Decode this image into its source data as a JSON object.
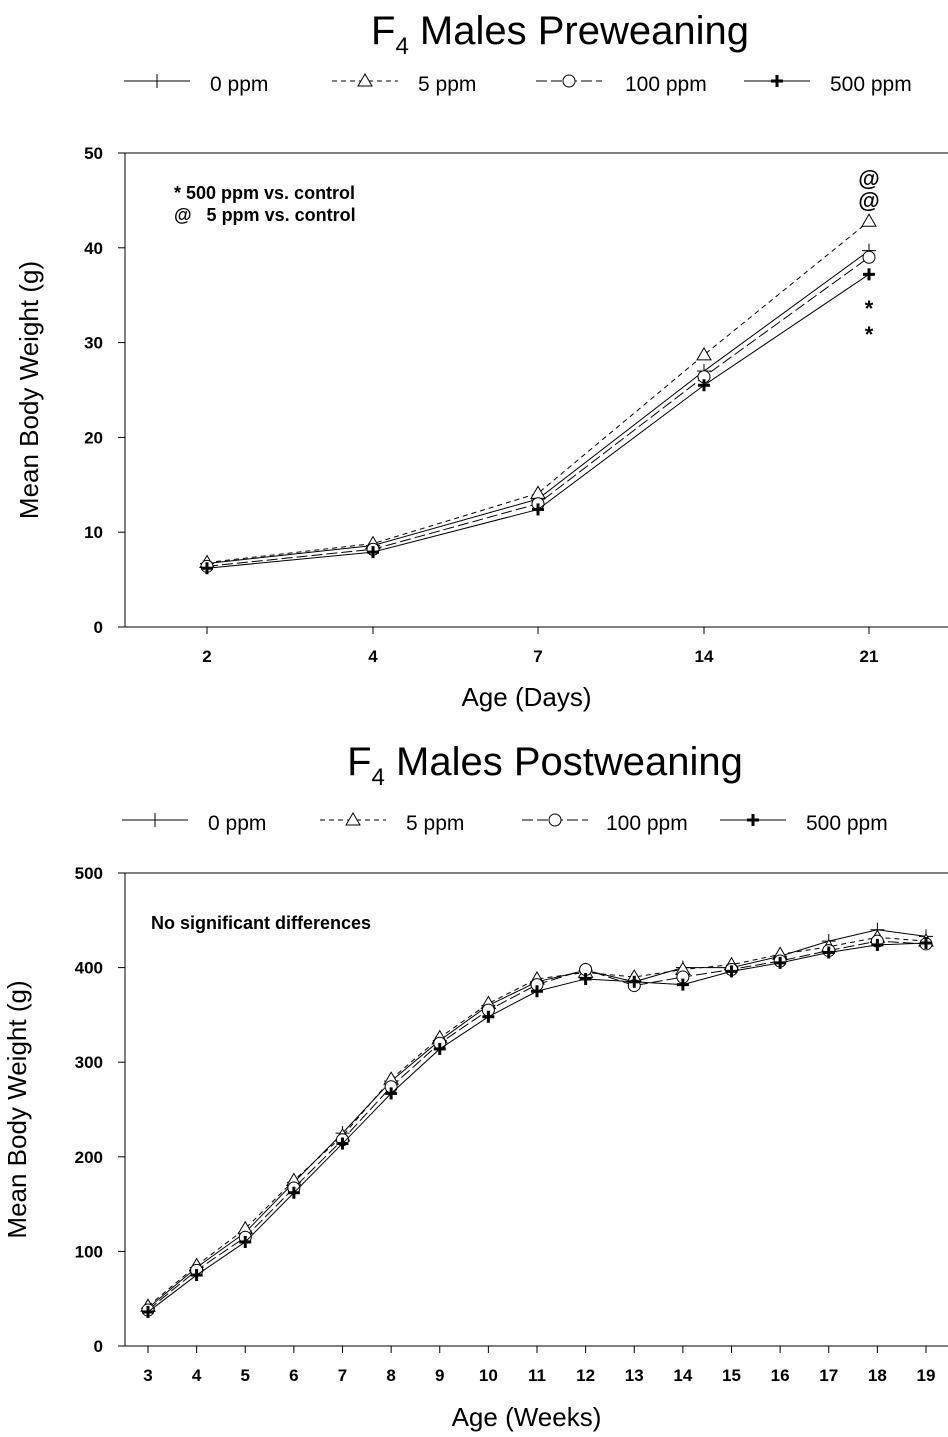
{
  "chart_data": [
    {
      "type": "line",
      "title": "F",
      "title_subscript": "4",
      "title_rest": " Males Preweaning",
      "xlabel": "Age (Days)",
      "ylabel": "Mean Body Weight (g)",
      "categories": [
        "2",
        "4",
        "7",
        "14",
        "21"
      ],
      "ylim": [
        0,
        50
      ],
      "yticks": [
        "0",
        "10",
        "20",
        "30",
        "40",
        "50"
      ],
      "grid": false,
      "legend_position": "top",
      "annotations": [
        "* 500 ppm vs. control",
        "@   5 ppm vs. control"
      ],
      "significance_marks": [
        "@",
        "@",
        "*",
        "*"
      ],
      "series": [
        {
          "name": "0 ppm",
          "marker": "thin-plus",
          "line": "solid",
          "values": [
            6.7,
            8.6,
            13.5,
            27.0,
            39.7
          ]
        },
        {
          "name": "5 ppm",
          "marker": "triangle",
          "line": "dashed",
          "values": [
            6.8,
            8.8,
            14.1,
            28.7,
            42.8
          ]
        },
        {
          "name": "100 ppm",
          "marker": "circle",
          "line": "longdash",
          "values": [
            6.4,
            8.2,
            13.0,
            26.4,
            39.0
          ]
        },
        {
          "name": "500 ppm",
          "marker": "bold-plus",
          "line": "solid",
          "values": [
            6.2,
            7.9,
            12.4,
            25.5,
            37.2
          ]
        }
      ]
    },
    {
      "type": "line",
      "title": "F",
      "title_subscript": "4",
      "title_rest": " Males Postweaning",
      "xlabel": "Age (Weeks)",
      "ylabel": "Mean Body Weight (g)",
      "categories": [
        "3",
        "4",
        "5",
        "6",
        "7",
        "8",
        "9",
        "10",
        "11",
        "12",
        "13",
        "14",
        "15",
        "16",
        "17",
        "18",
        "19"
      ],
      "ylim": [
        0,
        500
      ],
      "yticks": [
        "0",
        "100",
        "200",
        "300",
        "400",
        "500"
      ],
      "grid": false,
      "legend_position": "top",
      "annotations": [
        "No significant differences"
      ],
      "series": [
        {
          "name": "0 ppm",
          "marker": "thin-plus",
          "line": "solid",
          "values": [
            40,
            83,
            120,
            173,
            225,
            280,
            323,
            360,
            385,
            397,
            385,
            400,
            400,
            412,
            428,
            440,
            433
          ]
        },
        {
          "name": "5 ppm",
          "marker": "triangle",
          "line": "dashed",
          "values": [
            42,
            85,
            124,
            175,
            222,
            282,
            326,
            362,
            388,
            395,
            390,
            398,
            403,
            414,
            422,
            432,
            428
          ]
        },
        {
          "name": "100 ppm",
          "marker": "circle",
          "line": "longdash",
          "values": [
            38,
            80,
            115,
            167,
            218,
            274,
            320,
            355,
            382,
            398,
            381,
            390,
            398,
            407,
            418,
            428,
            425
          ]
        },
        {
          "name": "500 ppm",
          "marker": "bold-plus",
          "line": "solid",
          "values": [
            36,
            75,
            110,
            162,
            214,
            267,
            314,
            348,
            375,
            388,
            385,
            382,
            396,
            405,
            416,
            424,
            426
          ]
        }
      ]
    }
  ]
}
